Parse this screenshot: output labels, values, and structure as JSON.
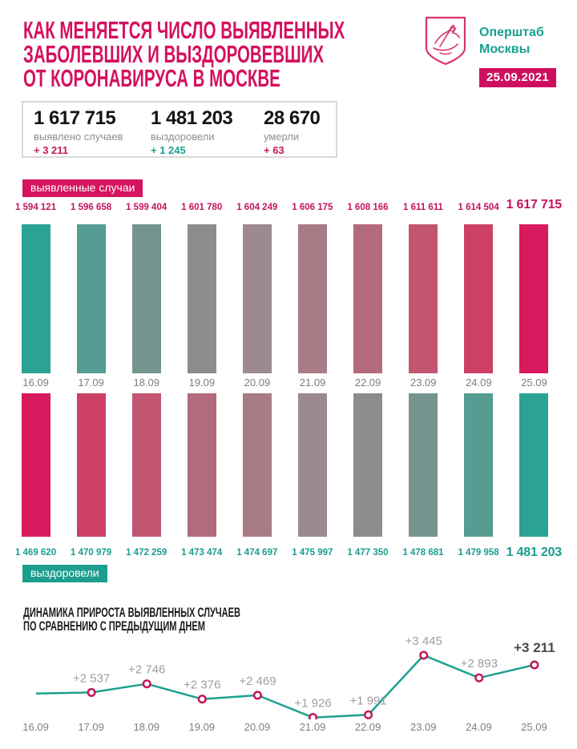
{
  "header": {
    "title_lines": [
      "КАК МЕНЯЕТСЯ ЧИСЛО ВЫЯВЛЕННЫХ",
      "ЗАБОЛЕВШИХ И ВЫЗДОРОВЕВШИХ",
      "ОТ КОРОНАВИРУСА В МОСКВЕ"
    ],
    "org_lines": [
      "Оперштаб",
      "Москвы"
    ],
    "date": "25.09.2021",
    "accent_pink": "#ce0f5f",
    "accent_teal": "#17a192"
  },
  "stats": {
    "items": [
      {
        "value": "1 617 715",
        "label": "выявлено случаев",
        "delta": "+ 3 211",
        "delta_color": "#c2185b"
      },
      {
        "value": "1 481 203",
        "label": "выздоровели",
        "delta": "+ 1 245",
        "delta_color": "#1a9f90"
      },
      {
        "value": "28 670",
        "label": "умерли",
        "delta": "+ 63",
        "delta_color": "#c2185b"
      }
    ]
  },
  "chart_data": [
    {
      "type": "bar",
      "name": "confirmed-cases",
      "badge": "выявленные случаи",
      "badge_color": "#d6135e",
      "categories": [
        "16.09",
        "17.09",
        "18.09",
        "19.09",
        "20.09",
        "21.09",
        "22.09",
        "23.09",
        "24.09",
        "25.09"
      ],
      "values": [
        1594121,
        1596658,
        1599404,
        1601780,
        1604249,
        1606175,
        1608166,
        1611611,
        1614504,
        1617715
      ],
      "value_labels": [
        "1 594 121",
        "1 596 658",
        "1 599 404",
        "1 601 780",
        "1 604 249",
        "1 606 175",
        "1 608 166",
        "1 611 611",
        "1 614 504",
        "1 617 715"
      ],
      "label_color": "#c3135f",
      "bar_colors": [
        "#2aa294",
        "#559c93",
        "#74958e",
        "#8e8c8a",
        "#9c8a8e",
        "#a87b86",
        "#b36a7c",
        "#c25671",
        "#cd4066",
        "#d9195e"
      ],
      "bars_equal_height": true
    },
    {
      "type": "bar",
      "name": "recovered",
      "badge": "выздоровели",
      "badge_color": "#1d9e8f",
      "categories": [
        "16.09",
        "17.09",
        "18.09",
        "19.09",
        "20.09",
        "21.09",
        "22.09",
        "23.09",
        "24.09",
        "25.09"
      ],
      "values": [
        1469620,
        1470979,
        1472259,
        1473474,
        1474697,
        1475997,
        1477350,
        1478681,
        1479958,
        1481203
      ],
      "value_labels": [
        "1 469 620",
        "1 470 979",
        "1 472 259",
        "1 473 474",
        "1 474 697",
        "1 475 997",
        "1 477 350",
        "1 478 681",
        "1 479 958",
        "1 481 203"
      ],
      "label_color": "#1a9c8d",
      "bar_colors": [
        "#d9195e",
        "#cd4066",
        "#c25671",
        "#b36a7c",
        "#a87b86",
        "#9c8a8e",
        "#8e8c8a",
        "#74958e",
        "#559c93",
        "#2aa294"
      ],
      "bars_equal_height": true
    },
    {
      "type": "line",
      "name": "daily-increase",
      "title_lines": [
        "ДИНАМИКА ПРИРОСТА ВЫЯВЛЕННЫХ СЛУЧАЕВ",
        "ПО СРАВНЕНИЮ С ПРЕДЫДУЩИМ ДНЕМ"
      ],
      "categories": [
        "16.09",
        "17.09",
        "18.09",
        "19.09",
        "20.09",
        "21.09",
        "22.09",
        "23.09",
        "24.09",
        "25.09"
      ],
      "values": [
        2510,
        2537,
        2746,
        2376,
        2469,
        1926,
        1991,
        3445,
        2893,
        3211
      ],
      "point_labels": [
        "",
        "+2 537",
        "+2 746",
        "+2 376",
        "+2 469",
        "+1 926",
        "+1 991",
        "+3 445",
        "+2 893",
        "+3 211"
      ],
      "highlight_last": true,
      "ylim": [
        1900,
        3500
      ],
      "line_color": "#1ca08f",
      "marker_stroke": "#c2185b",
      "label_color": "#9e9e9e",
      "label_color_last": "#4a4a4a",
      "legend_position": "none",
      "grid": false
    }
  ]
}
